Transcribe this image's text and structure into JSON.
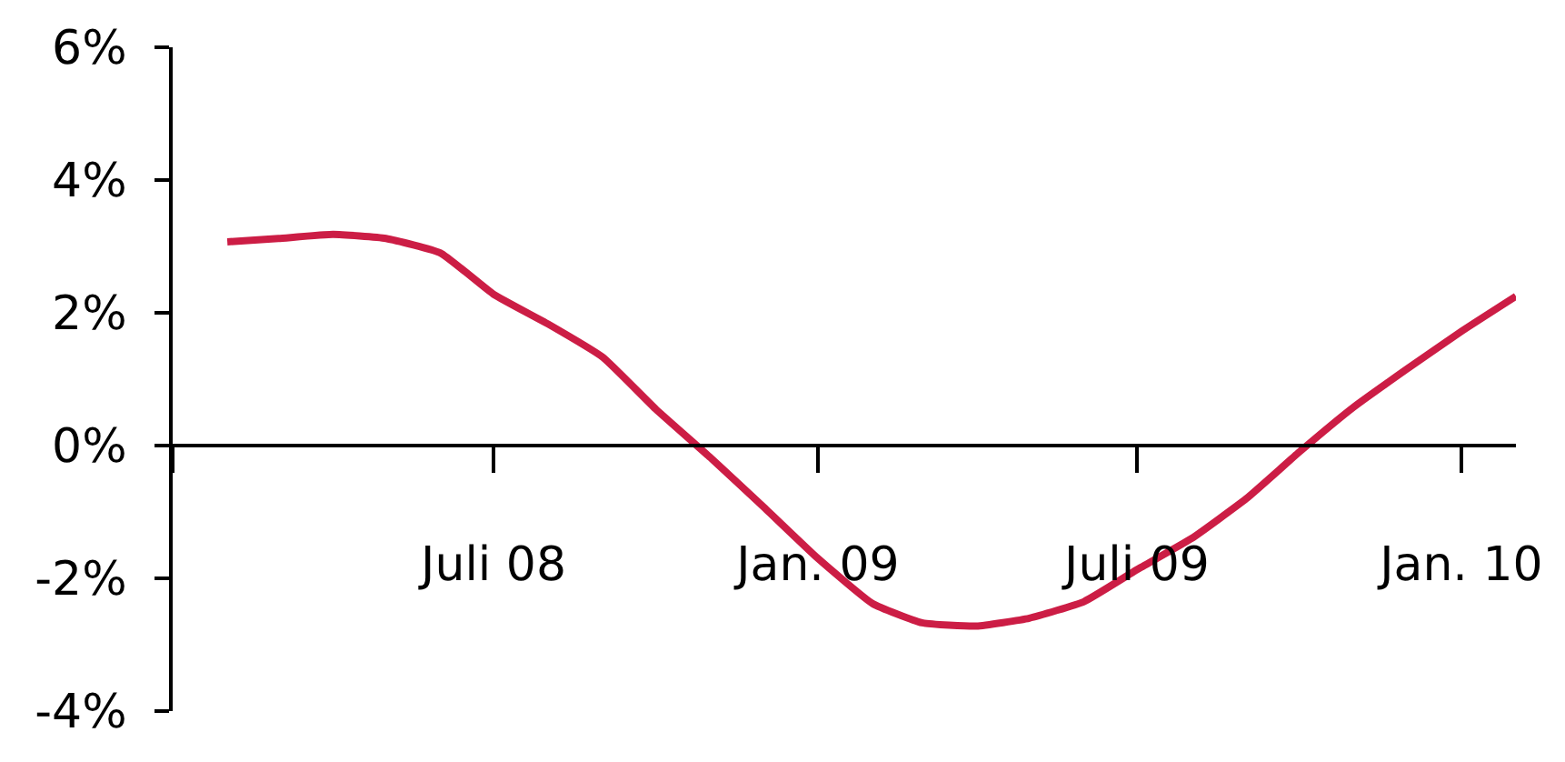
{
  "chart_data": {
    "type": "line",
    "x": [
      "2008-02",
      "2008-03",
      "2008-04",
      "2008-05",
      "2008-06",
      "2008-07",
      "2008-08",
      "2008-09",
      "2008-10",
      "2008-11",
      "2008-12",
      "2009-01",
      "2009-02",
      "2009-03",
      "2009-04",
      "2009-05",
      "2009-06",
      "2009-07",
      "2009-08",
      "2009-09",
      "2009-10",
      "2009-11",
      "2009-12",
      "2010-01",
      "2010-02"
    ],
    "series": [
      {
        "color": "#cc1d45",
        "values": [
          3.07,
          3.12,
          3.18,
          3.12,
          2.9,
          2.28,
          1.83,
          1.33,
          0.55,
          -0.18,
          -0.92,
          -1.7,
          -2.38,
          -2.67,
          -2.72,
          -2.6,
          -2.35,
          -1.87,
          -1.4,
          -0.8,
          -0.1,
          0.58,
          1.15,
          1.72,
          2.25
        ]
      }
    ],
    "xlim": [
      "2008-01",
      "2010-02"
    ],
    "xticks": [
      {
        "value": "2008-01",
        "label": null
      },
      {
        "value": "2008-07",
        "label": "Juli 08"
      },
      {
        "value": "2009-01",
        "label": "Jan. 09"
      },
      {
        "value": "2009-07",
        "label": "Juli 09"
      },
      {
        "value": "2010-01",
        "label": "Jan. 10"
      }
    ],
    "ylim": [
      -4,
      6
    ],
    "yticks": [
      {
        "value": -4,
        "label": "-4%"
      },
      {
        "value": -2,
        "label": "-2%"
      },
      {
        "value": 0,
        "label": "0%"
      },
      {
        "value": 2,
        "label": "2%"
      },
      {
        "value": 4,
        "label": "4%"
      },
      {
        "value": 6,
        "label": "6%"
      }
    ],
    "marker": "none",
    "line_style": "solid"
  }
}
